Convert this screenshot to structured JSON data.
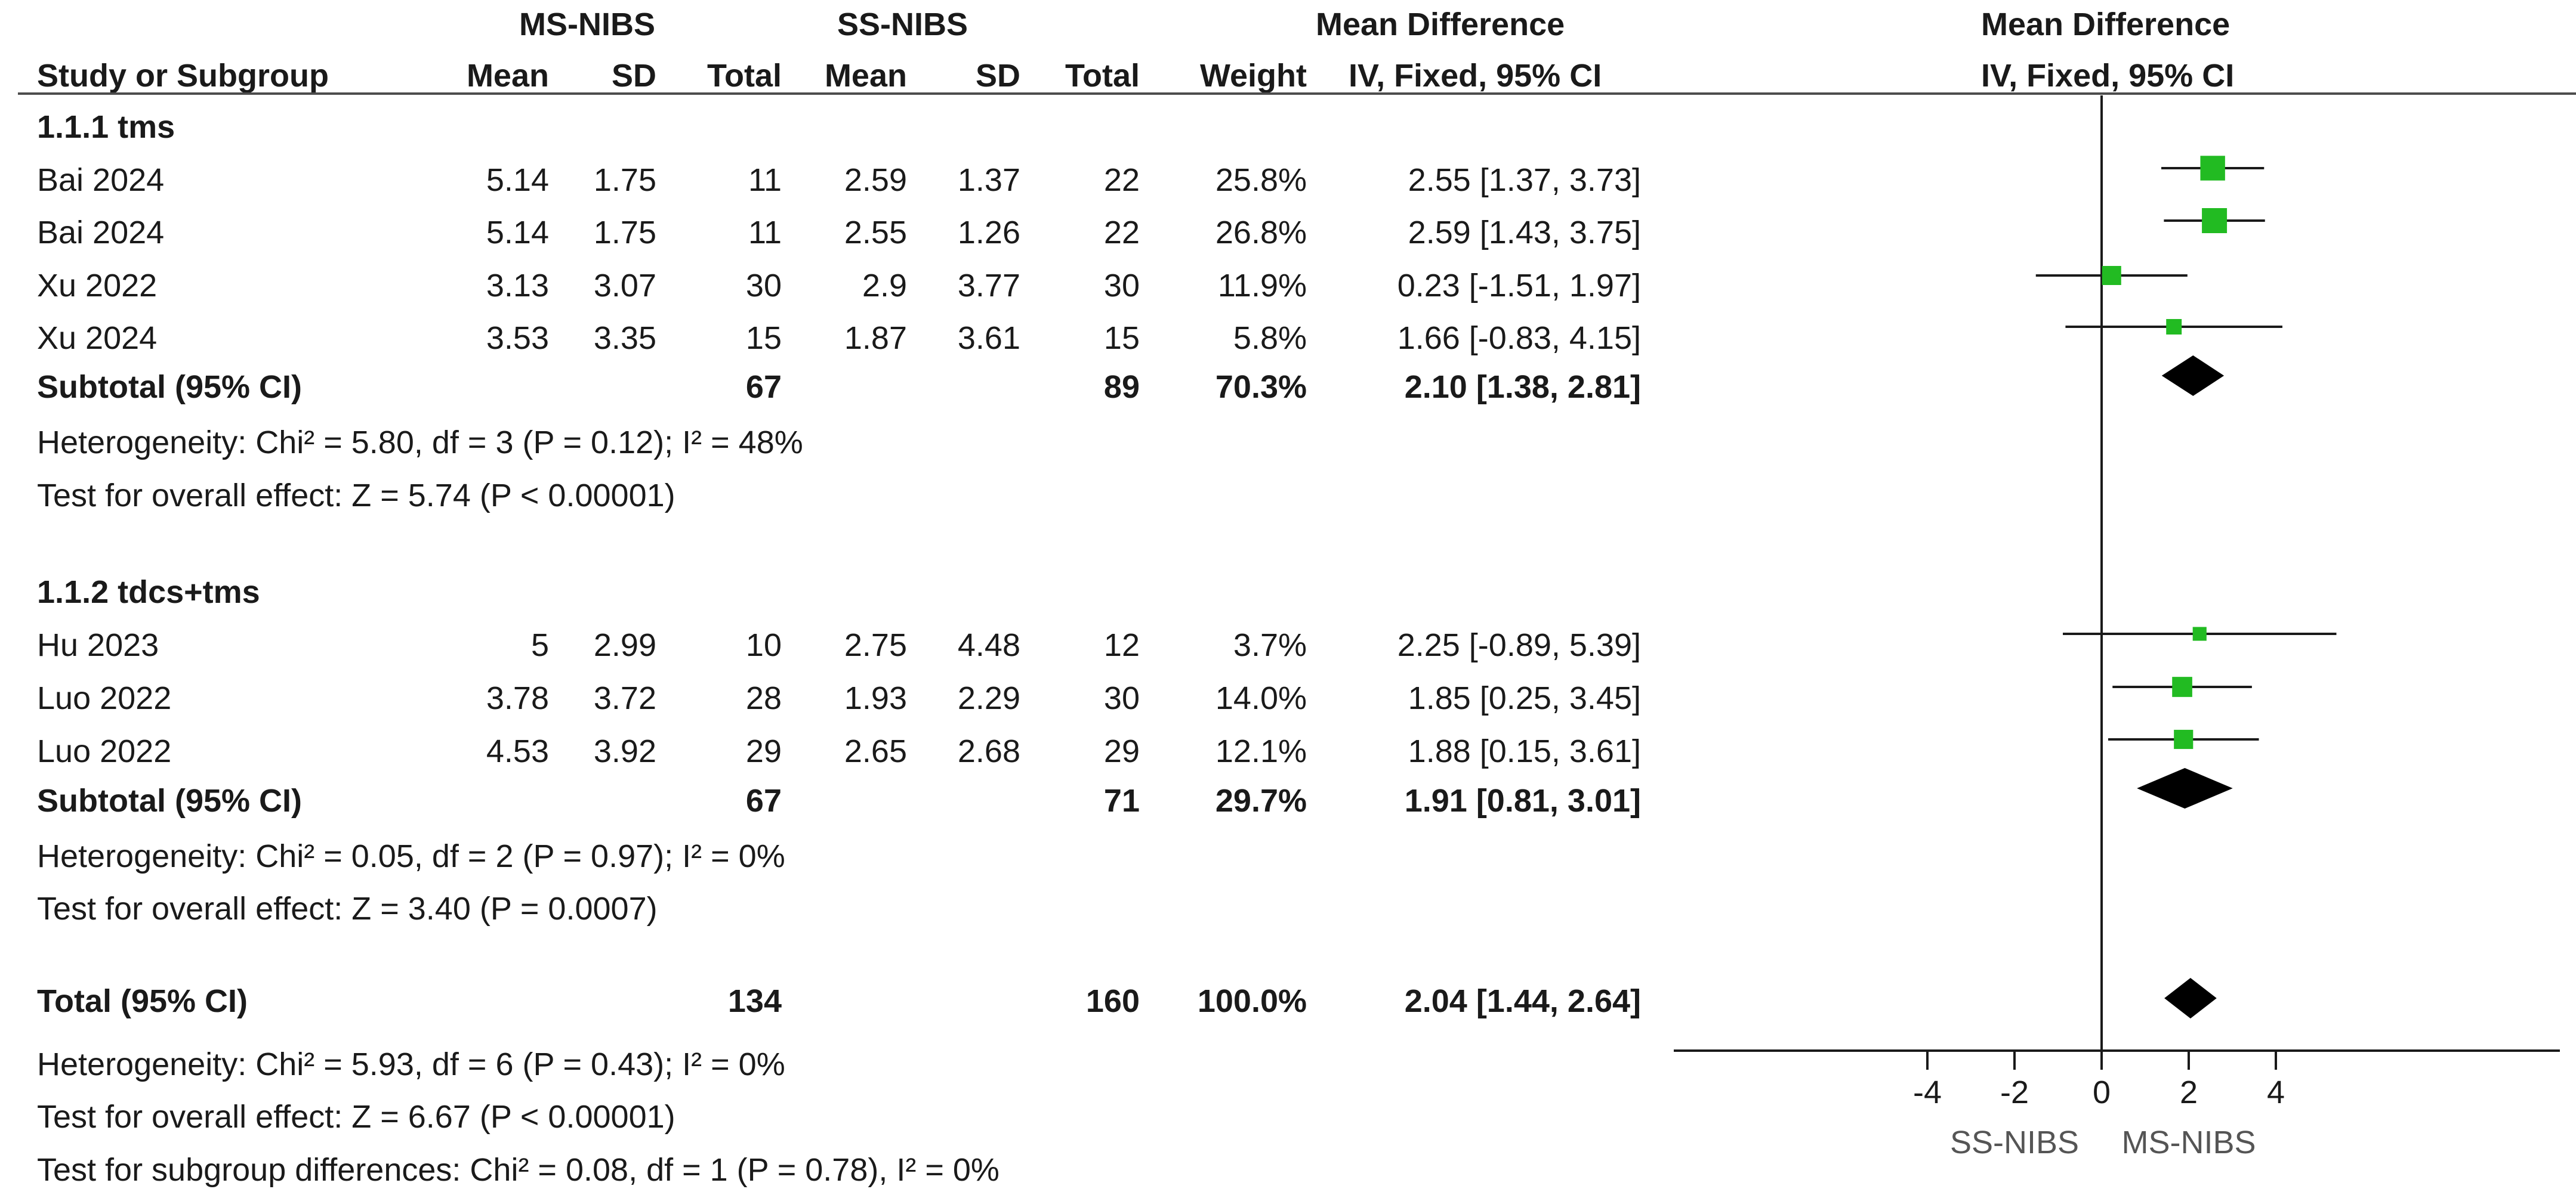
{
  "header": {
    "group_exp": "MS-NIBS",
    "group_ctrl": "SS-NIBS",
    "effect_title": "Mean Difference",
    "plot_title": "Mean Difference",
    "col_study": "Study or Subgroup",
    "col_mean": "Mean",
    "col_sd": "SD",
    "col_total": "Total",
    "col_weight": "Weight",
    "col_ci": "IV, Fixed, 95% CI",
    "plot_ci": "IV, Fixed, 95% CI"
  },
  "groups": [
    {
      "label": "1.1.1 tms",
      "studies": [
        {
          "study": "Bai 2024",
          "m1": "5.14",
          "sd1": "1.75",
          "n1": "11",
          "m2": "2.59",
          "sd2": "1.37",
          "n2": "22",
          "weight": "25.8%",
          "ci": "2.55 [1.37, 3.73]"
        },
        {
          "study": "Bai 2024",
          "m1": "5.14",
          "sd1": "1.75",
          "n1": "11",
          "m2": "2.55",
          "sd2": "1.26",
          "n2": "22",
          "weight": "26.8%",
          "ci": "2.59 [1.43, 3.75]"
        },
        {
          "study": "Xu 2022",
          "m1": "3.13",
          "sd1": "3.07",
          "n1": "30",
          "m2": "2.9",
          "sd2": "3.77",
          "n2": "30",
          "weight": "11.9%",
          "ci": "0.23 [-1.51, 1.97]"
        },
        {
          "study": "Xu 2024",
          "m1": "3.53",
          "sd1": "3.35",
          "n1": "15",
          "m2": "1.87",
          "sd2": "3.61",
          "n2": "15",
          "weight": "5.8%",
          "ci": "1.66 [-0.83, 4.15]"
        }
      ],
      "subtotal": {
        "label": "Subtotal (95% CI)",
        "n1": "67",
        "n2": "89",
        "weight": "70.3%",
        "ci": "2.10 [1.38, 2.81]"
      },
      "heterogeneity": "Heterogeneity: Chi² = 5.80, df = 3 (P = 0.12); I² = 48%",
      "overall": "Test for overall effect: Z = 5.74 (P < 0.00001)"
    },
    {
      "label": "1.1.2 tdcs+tms",
      "studies": [
        {
          "study": "Hu 2023",
          "m1": "5",
          "sd1": "2.99",
          "n1": "10",
          "m2": "2.75",
          "sd2": "4.48",
          "n2": "12",
          "weight": "3.7%",
          "ci": "2.25 [-0.89, 5.39]"
        },
        {
          "study": "Luo 2022",
          "m1": "3.78",
          "sd1": "3.72",
          "n1": "28",
          "m2": "1.93",
          "sd2": "2.29",
          "n2": "30",
          "weight": "14.0%",
          "ci": "1.85 [0.25, 3.45]"
        },
        {
          "study": "Luo 2022",
          "m1": "4.53",
          "sd1": "3.92",
          "n1": "29",
          "m2": "2.65",
          "sd2": "2.68",
          "n2": "29",
          "weight": "12.1%",
          "ci": "1.88 [0.15, 3.61]"
        }
      ],
      "subtotal": {
        "label": "Subtotal (95% CI)",
        "n1": "67",
        "n2": "71",
        "weight": "29.7%",
        "ci": "1.91 [0.81, 3.01]"
      },
      "heterogeneity": "Heterogeneity: Chi² = 0.05, df = 2 (P = 0.97); I² = 0%",
      "overall": "Test for overall effect: Z = 3.40 (P = 0.0007)"
    }
  ],
  "total": {
    "label": "Total (95% CI)",
    "n1": "134",
    "n2": "160",
    "weight": "100.0%",
    "ci": "2.04 [1.44, 2.64]"
  },
  "footer": [
    "Heterogeneity: Chi² = 5.93, df = 6 (P = 0.43); I² = 0%",
    "Test for overall effect: Z = 6.67 (P < 0.00001)",
    "Test for subgroup differences: Chi² = 0.08, df = 1 (P = 0.78), I² = 0%"
  ],
  "axis": {
    "ticks": [
      "-4",
      "-2",
      "0",
      "2",
      "4"
    ],
    "left_label": "SS-NIBS",
    "right_label": "MS-NIBS"
  },
  "colors": {
    "study_marker": "#22bb22",
    "summary_diamond": "#000000",
    "line": "#1a1a1a"
  },
  "chart_data": {
    "type": "forest",
    "xlim": [
      -4,
      4
    ],
    "null_value": 0,
    "rows": [
      {
        "label": "Bai 2024",
        "kind": "study",
        "estimate": 2.55,
        "lower": 1.37,
        "upper": 3.73,
        "weight": 25.8
      },
      {
        "label": "Bai 2024",
        "kind": "study",
        "estimate": 2.59,
        "lower": 1.43,
        "upper": 3.75,
        "weight": 26.8
      },
      {
        "label": "Xu 2022",
        "kind": "study",
        "estimate": 0.23,
        "lower": -1.51,
        "upper": 1.97,
        "weight": 11.9
      },
      {
        "label": "Xu 2024",
        "kind": "study",
        "estimate": 1.66,
        "lower": -0.83,
        "upper": 4.15,
        "weight": 5.8
      },
      {
        "label": "Subtotal (95% CI)",
        "kind": "summary",
        "estimate": 2.1,
        "lower": 1.38,
        "upper": 2.81
      },
      {
        "label": "Hu 2023",
        "kind": "study",
        "estimate": 2.25,
        "lower": -0.89,
        "upper": 5.39,
        "weight": 3.7
      },
      {
        "label": "Luo 2022",
        "kind": "study",
        "estimate": 1.85,
        "lower": 0.25,
        "upper": 3.45,
        "weight": 14.0
      },
      {
        "label": "Luo 2022",
        "kind": "study",
        "estimate": 1.88,
        "lower": 0.15,
        "upper": 3.61,
        "weight": 12.1
      },
      {
        "label": "Subtotal (95% CI)",
        "kind": "summary",
        "estimate": 1.91,
        "lower": 0.81,
        "upper": 3.01
      },
      {
        "label": "Total (95% CI)",
        "kind": "summary",
        "estimate": 2.04,
        "lower": 1.44,
        "upper": 2.64
      }
    ]
  }
}
